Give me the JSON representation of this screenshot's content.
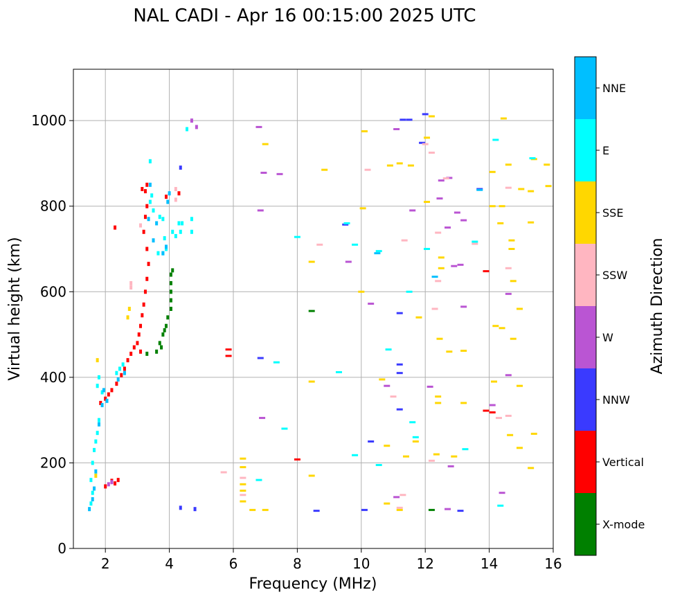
{
  "chart_data": {
    "type": "scatter",
    "title": "NAL CADI - Apr 16 00:15:00 2025 UTC",
    "xlabel": "Frequency (MHz)",
    "ylabel": "Virtual height (km)",
    "xlim": [
      1,
      16
    ],
    "ylim": [
      0,
      1120
    ],
    "xticks": [
      2,
      4,
      6,
      8,
      10,
      12,
      14,
      16
    ],
    "yticks": [
      0,
      200,
      400,
      600,
      800,
      1000
    ],
    "grid": true,
    "colorbar": {
      "title": "Azimuth Direction",
      "categories": [
        "X-mode",
        "Vertical",
        "NNW",
        "W",
        "SSW",
        "SSE",
        "E",
        "NNE"
      ],
      "colors": {
        "X-mode": "#008000",
        "Vertical": "#ff0000",
        "NNW": "#3a3aff",
        "W": "#ba55d3",
        "SSW": "#ffb6c1",
        "SSE": "#ffd700",
        "E": "#00ffff",
        "NNE": "#00bfff"
      }
    },
    "series": [
      {
        "name": "X-mode",
        "points": [
          [
            3.3,
            455
          ],
          [
            3.6,
            460
          ],
          [
            3.7,
            480
          ],
          [
            3.8,
            500
          ],
          [
            3.9,
            520
          ],
          [
            3.95,
            540
          ],
          [
            4.05,
            560
          ],
          [
            4.05,
            580
          ],
          [
            4.05,
            600
          ],
          [
            4.05,
            620
          ],
          [
            4.05,
            640
          ],
          [
            4.1,
            650
          ],
          [
            3.75,
            470
          ],
          [
            3.85,
            510
          ],
          [
            8.45,
            555
          ],
          [
            12.2,
            90
          ]
        ]
      },
      {
        "name": "Vertical",
        "points": [
          [
            1.85,
            340
          ],
          [
            2.0,
            350
          ],
          [
            2.1,
            360
          ],
          [
            2.2,
            370
          ],
          [
            2.35,
            385
          ],
          [
            2.5,
            405
          ],
          [
            2.6,
            420
          ],
          [
            2.7,
            440
          ],
          [
            2.8,
            455
          ],
          [
            2.9,
            470
          ],
          [
            3.0,
            480
          ],
          [
            3.05,
            500
          ],
          [
            3.1,
            520
          ],
          [
            3.15,
            545
          ],
          [
            3.2,
            570
          ],
          [
            3.25,
            600
          ],
          [
            3.3,
            630
          ],
          [
            3.35,
            665
          ],
          [
            3.3,
            700
          ],
          [
            3.2,
            740
          ],
          [
            3.25,
            775
          ],
          [
            3.3,
            800
          ],
          [
            3.25,
            835
          ],
          [
            3.3,
            850
          ],
          [
            3.15,
            840
          ],
          [
            2.2,
            158
          ],
          [
            2.3,
            152
          ],
          [
            2.4,
            160
          ],
          [
            2.0,
            145
          ],
          [
            2.3,
            750
          ],
          [
            5.85,
            465
          ],
          [
            5.85,
            450
          ],
          [
            8.0,
            208
          ],
          [
            13.9,
            322
          ],
          [
            14.1,
            318
          ],
          [
            13.9,
            648
          ],
          [
            3.9,
            822
          ],
          [
            4.3,
            830
          ],
          [
            3.1,
            460
          ]
        ]
      },
      {
        "name": "NNW",
        "points": [
          [
            4.35,
            890
          ],
          [
            4.35,
            95
          ],
          [
            4.8,
            92
          ],
          [
            9.5,
            757
          ],
          [
            8.6,
            88
          ],
          [
            10.1,
            90
          ],
          [
            10.3,
            250
          ],
          [
            11.3,
            1002
          ],
          [
            11.5,
            1002
          ],
          [
            12.0,
            1015
          ],
          [
            11.9,
            948
          ],
          [
            11.2,
            430
          ],
          [
            11.2,
            410
          ],
          [
            11.2,
            325
          ],
          [
            11.2,
            550
          ],
          [
            13.1,
            88
          ],
          [
            13.7,
            840
          ],
          [
            6.85,
            445
          ]
        ]
      },
      {
        "name": "W",
        "points": [
          [
            2.1,
            150
          ],
          [
            2.2,
            155
          ],
          [
            4.7,
            1000
          ],
          [
            4.85,
            985
          ],
          [
            6.8,
            985
          ],
          [
            6.85,
            790
          ],
          [
            6.95,
            878
          ],
          [
            7.45,
            875
          ],
          [
            6.9,
            305
          ],
          [
            9.6,
            670
          ],
          [
            10.3,
            572
          ],
          [
            10.8,
            380
          ],
          [
            11.1,
            980
          ],
          [
            11.1,
            120
          ],
          [
            11.6,
            790
          ],
          [
            12.5,
            860
          ],
          [
            12.75,
            866
          ],
          [
            12.45,
            818
          ],
          [
            13.0,
            785
          ],
          [
            13.2,
            767
          ],
          [
            13.2,
            565
          ],
          [
            12.9,
            660
          ],
          [
            13.1,
            663
          ],
          [
            12.8,
            192
          ],
          [
            12.7,
            92
          ],
          [
            14.1,
            335
          ],
          [
            14.4,
            130
          ],
          [
            14.6,
            405
          ],
          [
            14.6,
            595
          ],
          [
            12.15,
            378
          ],
          [
            12.7,
            750
          ]
        ]
      },
      {
        "name": "SSW",
        "points": [
          [
            2.8,
            610
          ],
          [
            2.8,
            620
          ],
          [
            3.1,
            755
          ],
          [
            4.2,
            815
          ],
          [
            4.2,
            840
          ],
          [
            5.7,
            178
          ],
          [
            6.3,
            125
          ],
          [
            6.3,
            165
          ],
          [
            8.7,
            710
          ],
          [
            10.2,
            885
          ],
          [
            11.0,
            355
          ],
          [
            11.2,
            95
          ],
          [
            11.3,
            125
          ],
          [
            11.35,
            720
          ],
          [
            12.2,
            205
          ],
          [
            12.3,
            560
          ],
          [
            12.4,
            625
          ],
          [
            12.4,
            738
          ],
          [
            12.65,
            865
          ],
          [
            13.55,
            712
          ],
          [
            14.3,
            305
          ],
          [
            14.6,
            310
          ],
          [
            14.6,
            655
          ],
          [
            14.6,
            843
          ],
          [
            12.2,
            925
          ],
          [
            12.0,
            945
          ]
        ]
      },
      {
        "name": "SSE",
        "points": [
          [
            1.7,
            170
          ],
          [
            1.75,
            440
          ],
          [
            2.7,
            540
          ],
          [
            2.75,
            560
          ],
          [
            6.3,
            150
          ],
          [
            6.3,
            135
          ],
          [
            6.3,
            110
          ],
          [
            6.3,
            190
          ],
          [
            6.3,
            210
          ],
          [
            6.6,
            90
          ],
          [
            7.0,
            90
          ],
          [
            7.0,
            945
          ],
          [
            8.45,
            670
          ],
          [
            8.45,
            390
          ],
          [
            8.45,
            170
          ],
          [
            8.85,
            885
          ],
          [
            10.0,
            600
          ],
          [
            10.05,
            795
          ],
          [
            10.65,
            395
          ],
          [
            10.8,
            240
          ],
          [
            10.8,
            105
          ],
          [
            10.9,
            895
          ],
          [
            11.2,
            90
          ],
          [
            11.2,
            900
          ],
          [
            11.55,
            895
          ],
          [
            11.4,
            215
          ],
          [
            11.7,
            250
          ],
          [
            11.8,
            540
          ],
          [
            12.05,
            810
          ],
          [
            12.05,
            960
          ],
          [
            12.2,
            1010
          ],
          [
            12.35,
            220
          ],
          [
            12.4,
            340
          ],
          [
            12.4,
            355
          ],
          [
            12.45,
            490
          ],
          [
            12.5,
            655
          ],
          [
            12.5,
            680
          ],
          [
            12.75,
            460
          ],
          [
            12.9,
            215
          ],
          [
            13.2,
            340
          ],
          [
            13.2,
            462
          ],
          [
            14.15,
            390
          ],
          [
            14.2,
            520
          ],
          [
            14.35,
            760
          ],
          [
            14.4,
            515
          ],
          [
            14.4,
            800
          ],
          [
            14.65,
            265
          ],
          [
            14.7,
            700
          ],
          [
            14.7,
            720
          ],
          [
            14.75,
            625
          ],
          [
            14.75,
            490
          ],
          [
            14.95,
            380
          ],
          [
            14.95,
            235
          ],
          [
            14.95,
            560
          ],
          [
            15.0,
            840
          ],
          [
            15.3,
            835
          ],
          [
            15.3,
            762
          ],
          [
            15.3,
            188
          ],
          [
            15.4,
            268
          ],
          [
            15.4,
            910
          ],
          [
            15.8,
            897
          ],
          [
            15.85,
            847
          ],
          [
            14.6,
            897
          ],
          [
            14.45,
            1005
          ],
          [
            14.1,
            880
          ],
          [
            14.1,
            800
          ],
          [
            10.1,
            975
          ]
        ]
      },
      {
        "name": "E",
        "points": [
          [
            1.55,
            105
          ],
          [
            1.6,
            130
          ],
          [
            1.55,
            160
          ],
          [
            1.6,
            200
          ],
          [
            1.65,
            230
          ],
          [
            1.7,
            250
          ],
          [
            1.75,
            270
          ],
          [
            1.8,
            300
          ],
          [
            1.75,
            380
          ],
          [
            1.8,
            400
          ],
          [
            1.9,
            365
          ],
          [
            2.35,
            410
          ],
          [
            2.45,
            420
          ],
          [
            2.55,
            430
          ],
          [
            3.4,
            905
          ],
          [
            3.4,
            810
          ],
          [
            3.45,
            825
          ],
          [
            3.5,
            790
          ],
          [
            3.7,
            775
          ],
          [
            3.8,
            770
          ],
          [
            3.85,
            725
          ],
          [
            3.9,
            700
          ],
          [
            3.65,
            690
          ],
          [
            3.8,
            690
          ],
          [
            4.2,
            730
          ],
          [
            4.3,
            760
          ],
          [
            4.35,
            740
          ],
          [
            4.4,
            760
          ],
          [
            4.7,
            740
          ],
          [
            4.7,
            770
          ],
          [
            4.1,
            740
          ],
          [
            9.3,
            412
          ],
          [
            9.55,
            760
          ],
          [
            9.8,
            710
          ],
          [
            10.55,
            695
          ],
          [
            10.55,
            195
          ],
          [
            10.85,
            465
          ],
          [
            11.5,
            600
          ],
          [
            11.6,
            295
          ],
          [
            11.7,
            260
          ],
          [
            12.05,
            700
          ],
          [
            13.55,
            717
          ],
          [
            13.25,
            232
          ],
          [
            14.2,
            955
          ],
          [
            14.35,
            100
          ],
          [
            15.35,
            912
          ],
          [
            4.55,
            980
          ],
          [
            7.35,
            435
          ],
          [
            7.6,
            280
          ],
          [
            6.8,
            160
          ],
          [
            9.8,
            218
          ],
          [
            8.0,
            728
          ]
        ]
      },
      {
        "name": "NNE",
        "points": [
          [
            1.5,
            92
          ],
          [
            1.6,
            115
          ],
          [
            1.7,
            180
          ],
          [
            1.65,
            140
          ],
          [
            1.8,
            290
          ],
          [
            1.9,
            335
          ],
          [
            1.95,
            370
          ],
          [
            2.05,
            345
          ],
          [
            2.4,
            395
          ],
          [
            2.6,
            410
          ],
          [
            3.4,
            850
          ],
          [
            3.35,
            770
          ],
          [
            3.5,
            720
          ],
          [
            3.6,
            760
          ],
          [
            3.8,
            690
          ],
          [
            3.9,
            705
          ],
          [
            10.5,
            690
          ],
          [
            13.7,
            838
          ],
          [
            12.3,
            635
          ],
          [
            4.0,
            830
          ],
          [
            3.95,
            810
          ]
        ]
      }
    ]
  }
}
